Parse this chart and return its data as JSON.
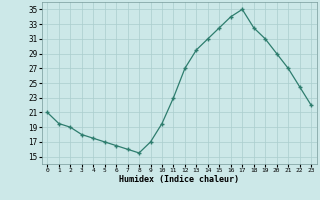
{
  "x": [
    0,
    1,
    2,
    3,
    4,
    5,
    6,
    7,
    8,
    9,
    10,
    11,
    12,
    13,
    14,
    15,
    16,
    17,
    18,
    19,
    20,
    21,
    22,
    23
  ],
  "y": [
    21,
    19.5,
    19,
    18,
    17.5,
    17,
    16.5,
    16,
    15.5,
    17,
    19.5,
    23,
    27,
    29.5,
    31,
    32.5,
    34,
    35,
    32.5,
    31,
    29,
    27,
    24.5,
    22
  ],
  "xlabel": "Humidex (Indice chaleur)",
  "ylim": [
    14,
    36
  ],
  "xlim": [
    -0.5,
    23.5
  ],
  "yticks": [
    15,
    17,
    19,
    21,
    23,
    25,
    27,
    29,
    31,
    33,
    35
  ],
  "xticks": [
    0,
    1,
    2,
    3,
    4,
    5,
    6,
    7,
    8,
    9,
    10,
    11,
    12,
    13,
    14,
    15,
    16,
    17,
    18,
    19,
    20,
    21,
    22,
    23
  ],
  "line_color": "#2e7d6e",
  "bg_color": "#cce8e8",
  "grid_color": "#aacece"
}
